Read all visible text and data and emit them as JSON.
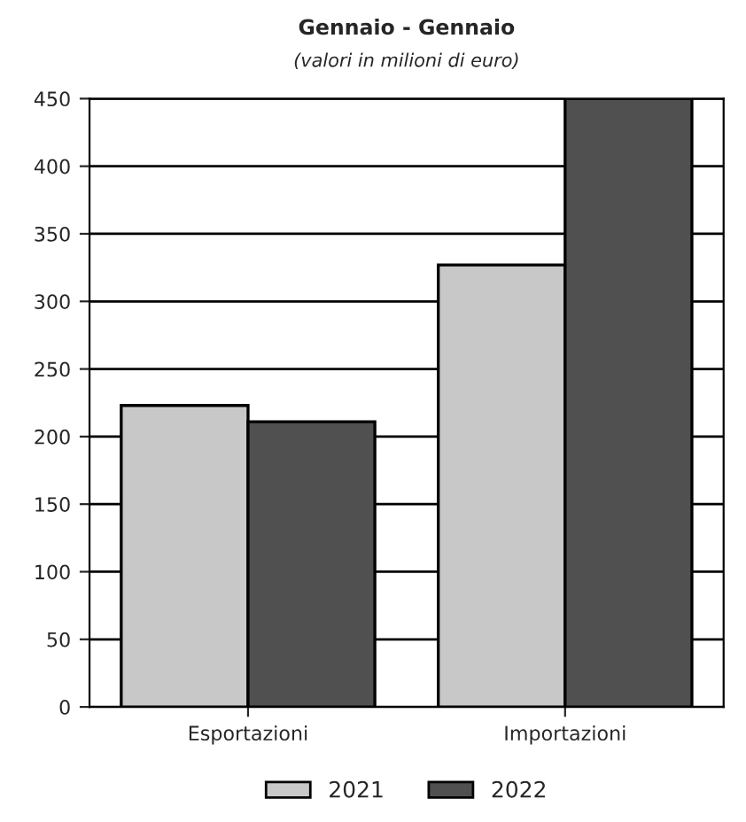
{
  "chart_data": {
    "type": "bar",
    "title": "Gennaio - Gennaio",
    "subtitle": "(valori in milioni di euro)",
    "categories": [
      "Esportazioni",
      "Importazioni"
    ],
    "series": [
      {
        "name": "2021",
        "color": "#c8c8c8",
        "values": [
          223,
          327
        ]
      },
      {
        "name": "2022",
        "color": "#505050",
        "values": [
          211,
          450
        ]
      }
    ],
    "ylim": [
      0,
      450
    ],
    "yticks": [
      0,
      50,
      100,
      150,
      200,
      250,
      300,
      350,
      400,
      450
    ],
    "grid": "y",
    "legend": "bottom"
  }
}
